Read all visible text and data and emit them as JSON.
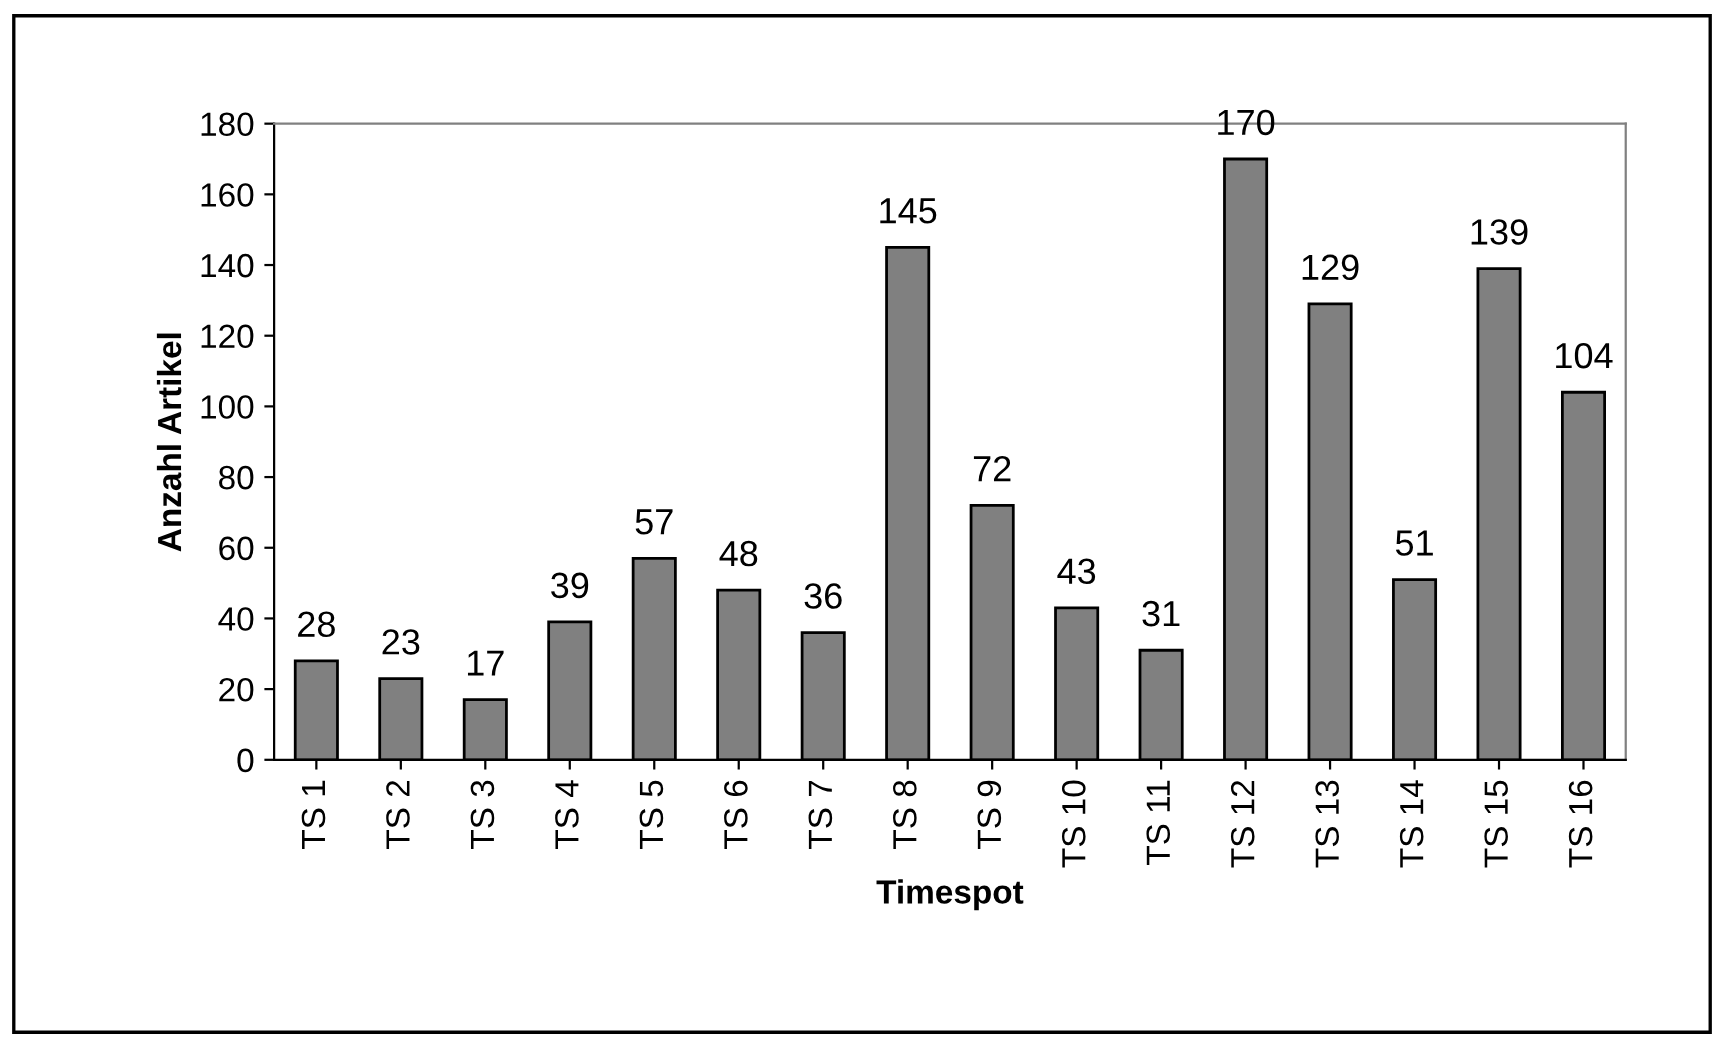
{
  "chart_data": {
    "type": "bar",
    "xlabel": "Timespot",
    "ylabel": "Anzahl Artikel",
    "categories": [
      "TS 1",
      "TS 2",
      "TS 3",
      "TS 4",
      "TS 5",
      "TS 6",
      "TS 7",
      "TS 8",
      "TS 9",
      "TS 10",
      "TS 11",
      "TS 12",
      "TS 13",
      "TS 14",
      "TS 15",
      "TS 16"
    ],
    "values": [
      28,
      23,
      17,
      39,
      57,
      48,
      36,
      145,
      72,
      43,
      31,
      170,
      129,
      51,
      139,
      104
    ],
    "color": "#808080",
    "ylim": [
      0,
      180
    ],
    "yticks": [
      0,
      20,
      40,
      60,
      80,
      100,
      120,
      140,
      160,
      180
    ],
    "data_labels": true,
    "grid": false,
    "legend": false
  }
}
